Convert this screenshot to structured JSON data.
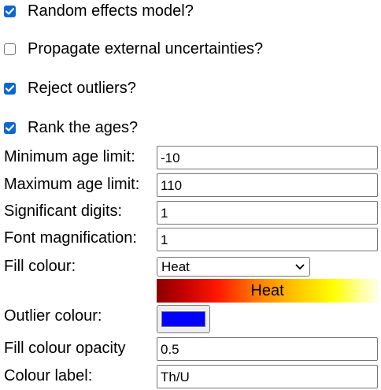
{
  "checkboxes": [
    {
      "label": "Random effects model?",
      "checked": true
    },
    {
      "label": "Propagate external uncertainties?",
      "checked": false
    },
    {
      "label": "Reject outliers?",
      "checked": true
    },
    {
      "label": "Rank the ages?",
      "checked": true
    }
  ],
  "fields": {
    "min_age": {
      "label": "Minimum age limit:",
      "value": "-10"
    },
    "max_age": {
      "label": "Maximum age limit:",
      "value": "110"
    },
    "sig_digits": {
      "label": "Significant digits:",
      "value": "1"
    },
    "font_mag": {
      "label": "Font magnification:",
      "value": "1"
    },
    "fill_colour": {
      "label": "Fill colour:",
      "value": "Heat",
      "ramp_label": "Heat"
    },
    "outlier_colour": {
      "label": "Outlier colour:",
      "value": "#0000ff"
    },
    "opacity": {
      "label": "Fill colour opacity",
      "value": "0.5"
    },
    "colour_label": {
      "label": "Colour label:",
      "value": "Th/U"
    }
  },
  "colors": {
    "checkbox_accent": "#0a67d4",
    "outlier": "#0000ff"
  },
  "icons": {
    "checkmark": "checkmark-icon",
    "dropdown": "chevron-down-icon"
  }
}
